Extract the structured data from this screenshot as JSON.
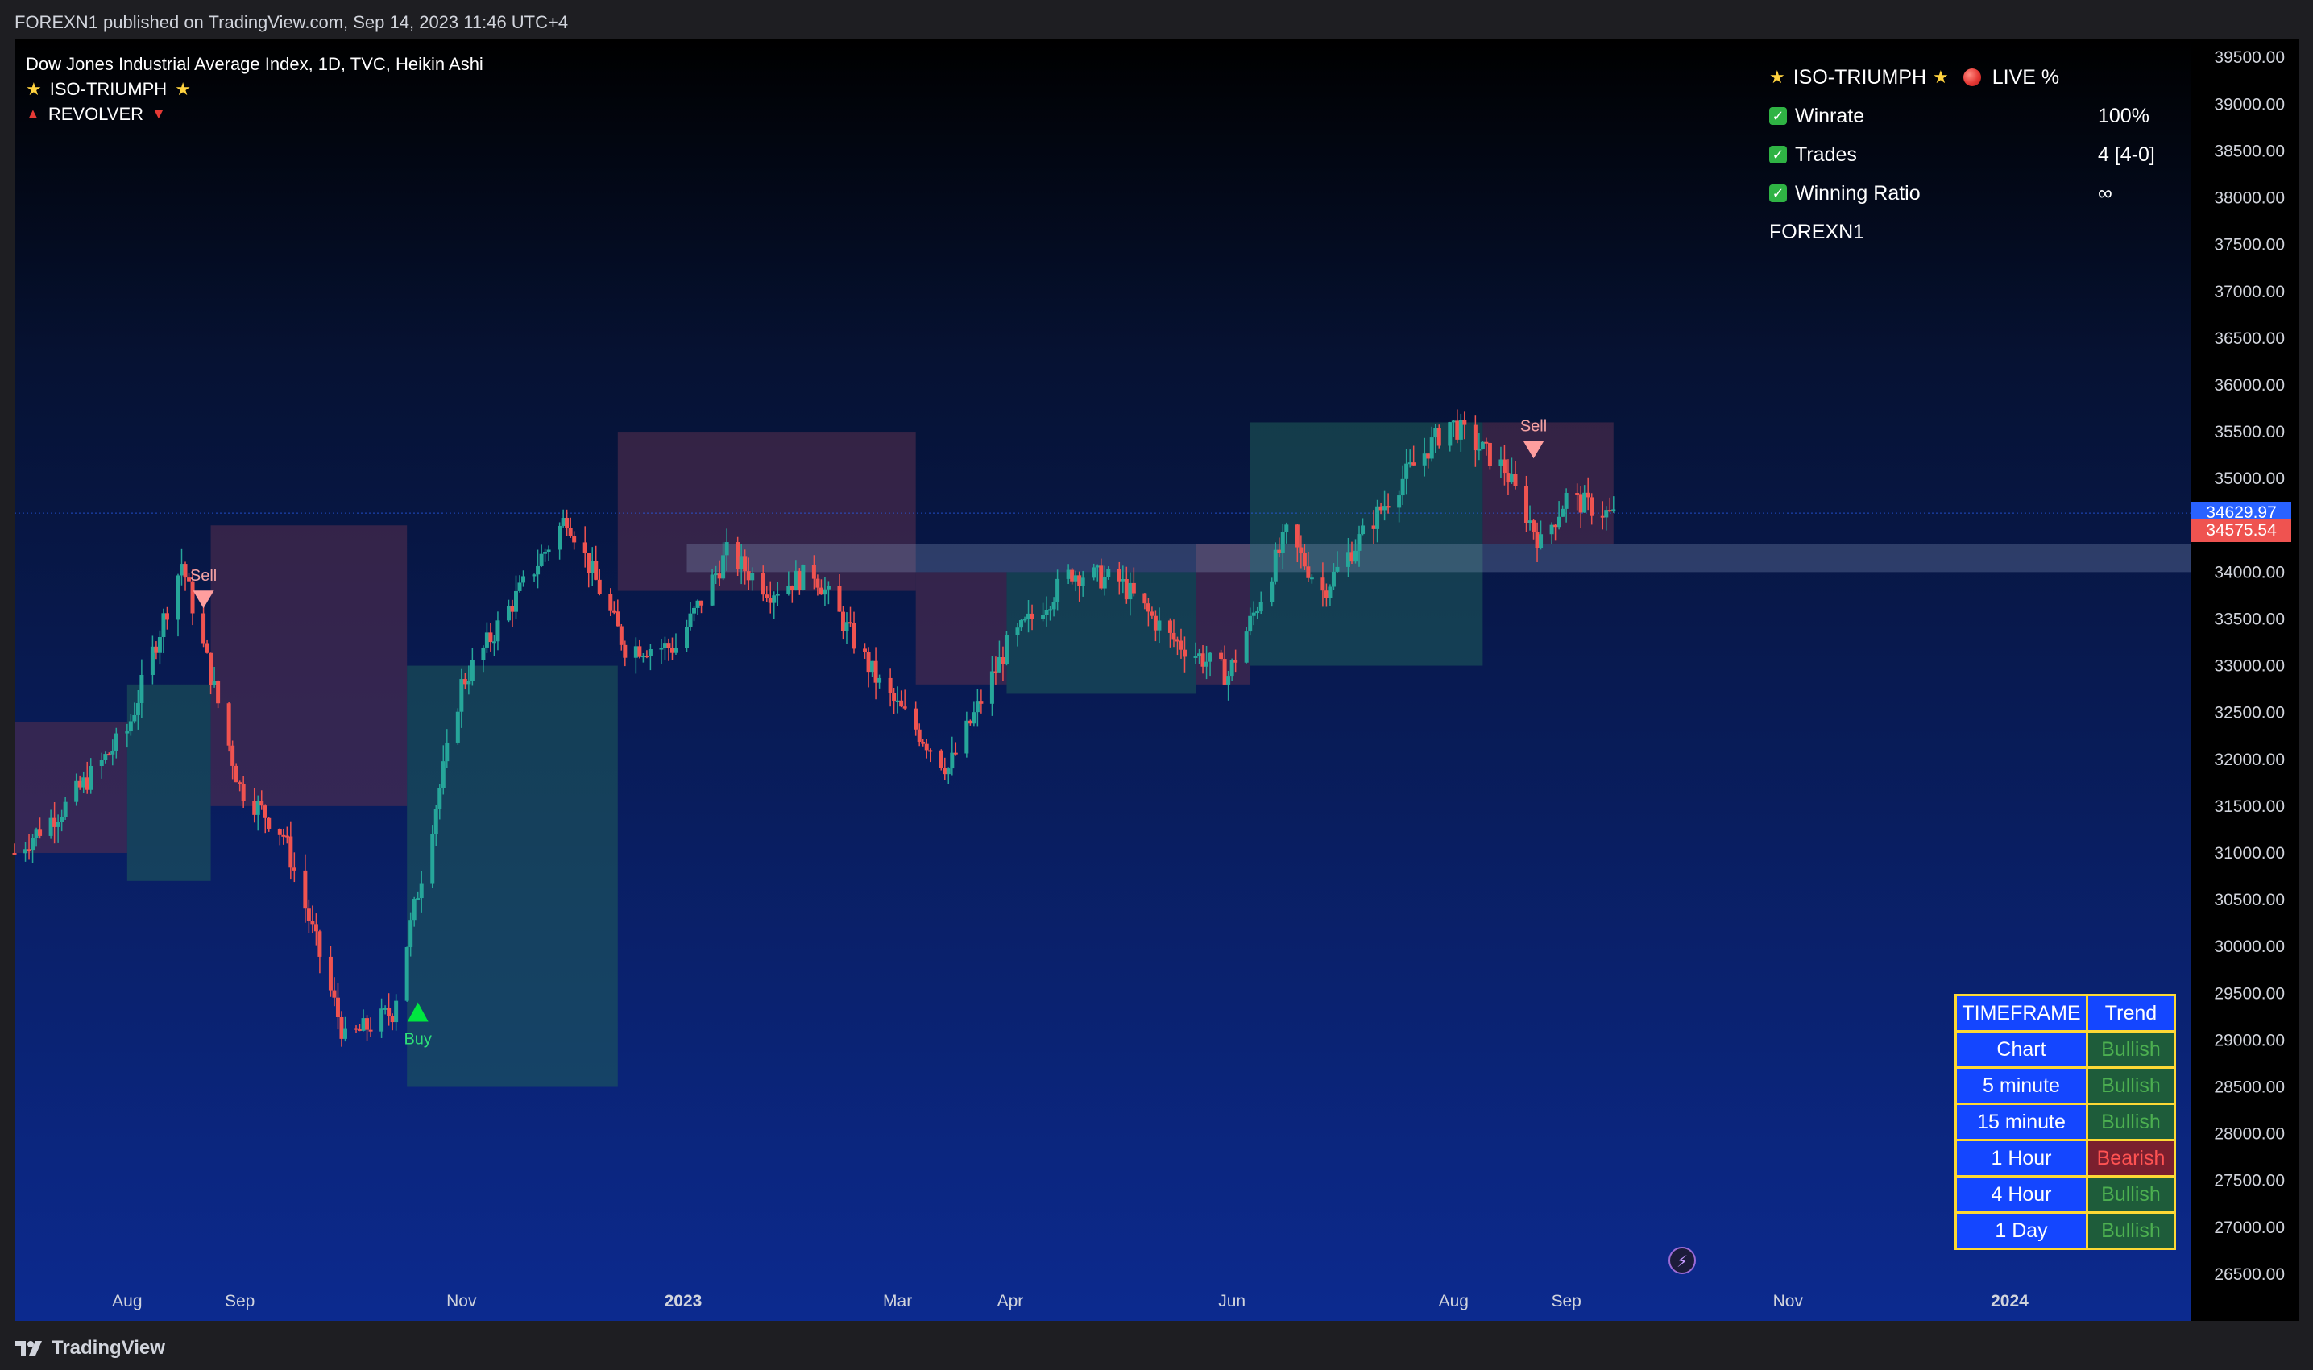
{
  "header": {
    "published": "FOREXN1 published on TradingView.com, Sep 14, 2023 11:46 UTC+4"
  },
  "footer": {
    "brand": "TradingView"
  },
  "legend": {
    "symbol": "Dow Jones Industrial Average Index, 1D, TVC, Heikin Ashi",
    "indicator1": "ISO-TRIUMPH",
    "indicator2": "REVOLVER"
  },
  "stats": {
    "title": "ISO-TRIUMPH",
    "live": "LIVE %",
    "rows": [
      {
        "label": "Winrate",
        "value": "100%"
      },
      {
        "label": "Trades",
        "value": "4 [4-0]"
      },
      {
        "label": "Winning Ratio",
        "value": "∞"
      }
    ],
    "author": "FOREXN1"
  },
  "timeframe_table": {
    "header": [
      "TIMEFRAME",
      "Trend"
    ],
    "rows": [
      {
        "tf": "Chart",
        "trend": "Bullish"
      },
      {
        "tf": "5 minute",
        "trend": "Bullish"
      },
      {
        "tf": "15 minute",
        "trend": "Bullish"
      },
      {
        "tf": "1 Hour",
        "trend": "Bearish"
      },
      {
        "tf": "4 Hour",
        "trend": "Bullish"
      },
      {
        "tf": "1 Day",
        "trend": "Bullish"
      }
    ]
  },
  "price_tags": {
    "last": "34629.97",
    "close": "34575.54"
  },
  "colors": {
    "bull": "#26a69a",
    "bear": "#ef5350",
    "bull_text": "#4caf50",
    "bear_text": "#ff5252",
    "table_blue": "#1446ff",
    "table_border": "#fdd835",
    "buy_marker": "#00e640",
    "sell_marker": "#ff9e9e"
  },
  "chart_data": {
    "type": "candlestick",
    "title": "Dow Jones Industrial Average Index, 1D, TVC, Heikin Ashi",
    "y_ticks": [
      39500,
      39000,
      38500,
      38000,
      37500,
      37000,
      36500,
      36000,
      35500,
      35000,
      34000,
      33500,
      33000,
      32500,
      32000,
      31500,
      31000,
      30500,
      30000,
      29500,
      29000,
      28500,
      28000,
      27500,
      27000,
      26500
    ],
    "y_tick_labels": [
      "39500.00",
      "39000.00",
      "38500.00",
      "38000.00",
      "37500.00",
      "37000.00",
      "36500.00",
      "36000.00",
      "35500.00",
      "35000.00",
      "34000.00",
      "33500.00",
      "33000.00",
      "32500.00",
      "32000.00",
      "31500.00",
      "31000.00",
      "30500.00",
      "30000.00",
      "29500.00",
      "29000.00",
      "28500.00",
      "28000.00",
      "27500.00",
      "27000.00",
      "26500.00"
    ],
    "ylim": [
      26000,
      39700
    ],
    "x_range": [
      "2022-07-01",
      "2024-02-20"
    ],
    "x_ticks": [
      {
        "label": "Aug",
        "date": "2022-08-01",
        "bold": false
      },
      {
        "label": "Sep",
        "date": "2022-09-01",
        "bold": false
      },
      {
        "label": "Nov",
        "date": "2022-11-01",
        "bold": false
      },
      {
        "label": "2023",
        "date": "2023-01-01",
        "bold": true
      },
      {
        "label": "Mar",
        "date": "2023-03-01",
        "bold": false
      },
      {
        "label": "Apr",
        "date": "2023-04-01",
        "bold": false
      },
      {
        "label": "Jun",
        "date": "2023-06-01",
        "bold": false
      },
      {
        "label": "Aug",
        "date": "2023-08-01",
        "bold": false
      },
      {
        "label": "Sep",
        "date": "2023-09-01",
        "bold": false
      },
      {
        "label": "Nov",
        "date": "2023-11-01",
        "bold": false
      },
      {
        "label": "2024",
        "date": "2024-01-01",
        "bold": true
      }
    ],
    "anchors": [
      [
        "2022-07-01",
        31000
      ],
      [
        "2022-07-15",
        31500
      ],
      [
        "2022-08-01",
        32300
      ],
      [
        "2022-08-16",
        34100
      ],
      [
        "2022-09-01",
        31700
      ],
      [
        "2022-09-13",
        31200
      ],
      [
        "2022-09-30",
        29000
      ],
      [
        "2022-10-13",
        29300
      ],
      [
        "2022-11-01",
        32800
      ],
      [
        "2022-11-30",
        34600
      ],
      [
        "2022-12-16",
        33200
      ],
      [
        "2022-12-30",
        33200
      ],
      [
        "2023-01-13",
        34200
      ],
      [
        "2023-01-25",
        33800
      ],
      [
        "2023-02-06",
        34000
      ],
      [
        "2023-02-24",
        32800
      ],
      [
        "2023-03-15",
        31900
      ],
      [
        "2023-03-31",
        33200
      ],
      [
        "2023-04-18",
        34000
      ],
      [
        "2023-05-01",
        33900
      ],
      [
        "2023-05-15",
        33300
      ],
      [
        "2023-05-31",
        32900
      ],
      [
        "2023-06-16",
        34400
      ],
      [
        "2023-06-26",
        33800
      ],
      [
        "2023-07-18",
        35000
      ],
      [
        "2023-07-31",
        35600
      ],
      [
        "2023-08-15",
        35100
      ],
      [
        "2023-08-25",
        34300
      ],
      [
        "2023-09-01",
        34800
      ],
      [
        "2023-09-14",
        34600
      ]
    ],
    "cloud": [
      {
        "from": "2022-07-01",
        "to": "2022-08-01",
        "upper": 32400,
        "lower": 31000,
        "color": "bear"
      },
      {
        "from": "2022-08-01",
        "to": "2022-08-24",
        "upper": 32800,
        "lower": 30700,
        "color": "bull"
      },
      {
        "from": "2022-08-24",
        "to": "2022-10-17",
        "upper": 34500,
        "lower": 31500,
        "color": "bear"
      },
      {
        "from": "2022-10-17",
        "to": "2022-12-14",
        "upper": 33000,
        "lower": 28500,
        "color": "bull"
      },
      {
        "from": "2022-12-14",
        "to": "2023-03-06",
        "upper": 35500,
        "lower": 33800,
        "color": "bear"
      },
      {
        "from": "2023-03-06",
        "to": "2023-03-31",
        "upper": 34000,
        "lower": 32800,
        "color": "bear"
      },
      {
        "from": "2023-03-31",
        "to": "2023-05-22",
        "upper": 34000,
        "lower": 32700,
        "color": "bull"
      },
      {
        "from": "2023-05-22",
        "to": "2023-06-06",
        "upper": 34300,
        "lower": 32800,
        "color": "bear"
      },
      {
        "from": "2023-06-06",
        "to": "2023-08-09",
        "upper": 35600,
        "lower": 33000,
        "color": "bull"
      },
      {
        "from": "2023-08-09",
        "to": "2023-09-14",
        "upper": 35600,
        "lower": 34300,
        "color": "bear"
      }
    ],
    "zone": {
      "from": "2023-01-02",
      "to": "2024-02-20",
      "upper": 34300,
      "lower": 34000
    },
    "signals": [
      {
        "type": "sell",
        "date": "2022-08-22",
        "price": 33700,
        "label": "Sell"
      },
      {
        "type": "buy",
        "date": "2022-10-20",
        "price": 29300,
        "label": "Buy"
      },
      {
        "type": "sell",
        "date": "2023-08-23",
        "price": 35300,
        "label": "Sell"
      }
    ],
    "last_price": 34629.97,
    "close_price": 34575.54
  }
}
